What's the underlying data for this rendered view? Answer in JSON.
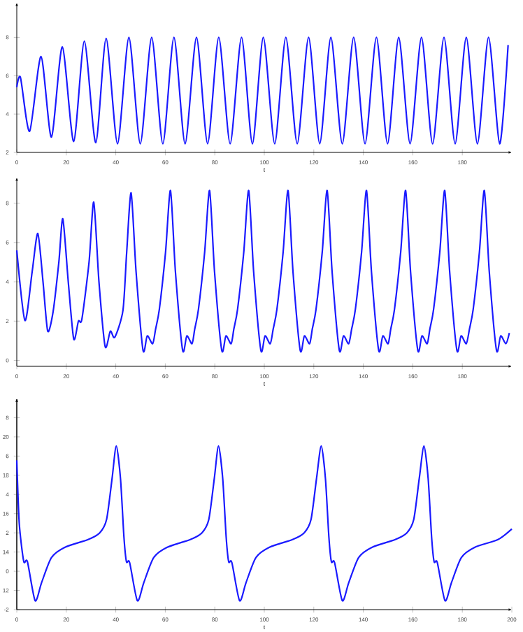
{
  "chart_data": [
    {
      "type": "line",
      "xlabel": "t",
      "color": "#1a1aff",
      "xlim": [
        0,
        200
      ],
      "ylim": [
        2,
        9.8
      ],
      "xticks": [
        0,
        20,
        40,
        60,
        80,
        100,
        120,
        140,
        160,
        180
      ],
      "yticks": [
        2,
        4,
        6,
        8
      ],
      "x": [
        0,
        1.5,
        5.2,
        9.8,
        14.0,
        18.4,
        23.0,
        27.3,
        31.9,
        36.1,
        40.7,
        45.3,
        49.9,
        54.5,
        59.0,
        63.5,
        68.0,
        72.6,
        77.1,
        81.6,
        86.2,
        90.8,
        95.2,
        99.6,
        104.2,
        108.7,
        113.3,
        117.9,
        122.4,
        126.9,
        131.5,
        136.1,
        140.7,
        145.3,
        149.8,
        154.3,
        158.9,
        163.5,
        168.0,
        172.6,
        177.1,
        181.6,
        186.1,
        190.6,
        195.1,
        198.5
      ],
      "values": [
        5.4,
        5.9,
        3.1,
        7.0,
        2.8,
        7.5,
        2.57,
        7.8,
        2.5,
        7.95,
        2.45,
        8.0,
        2.45,
        8.0,
        2.45,
        8.0,
        2.45,
        8.0,
        2.45,
        8.0,
        2.45,
        8.0,
        2.45,
        8.0,
        2.45,
        8.0,
        2.45,
        8.0,
        2.45,
        8.0,
        2.45,
        8.0,
        2.45,
        8.0,
        2.45,
        8.0,
        2.45,
        8.0,
        2.45,
        8.0,
        2.45,
        8.0,
        2.45,
        8.0,
        2.45,
        7.6
      ]
    },
    {
      "type": "line",
      "xlabel": "t",
      "color": "#1a1aff",
      "xlim": [
        0,
        200
      ],
      "ylim": [
        -0.3,
        9.3
      ],
      "xticks": [
        0,
        20,
        40,
        60,
        80,
        100,
        120,
        140,
        160,
        180
      ],
      "yticks": [
        0,
        2,
        4,
        6,
        8
      ],
      "x": [
        0,
        3.3,
        6.2,
        8.5,
        10.6,
        12.5,
        14.7,
        17.0,
        18.6,
        20.8,
        23.0,
        24.9,
        26.3,
        29.2,
        31.1,
        33.2,
        35.7,
        37.8,
        39.6,
        42.9,
        44.4,
        46.2,
        48.2,
        51.0,
        52.7,
        54.9,
        56.1,
        57.6,
        60.1,
        62.1,
        64.1,
        67.0,
        68.7,
        70.8,
        71.9,
        73.4,
        75.9,
        77.9,
        79.9,
        82.8,
        84.5,
        86.6,
        87.7,
        89.2,
        91.7,
        93.7,
        95.7,
        98.6,
        100.3,
        102.4,
        103.6,
        105.1,
        107.6,
        109.6,
        111.6,
        114.5,
        116.2,
        118.3,
        119.4,
        120.9,
        123.4,
        125.4,
        127.4,
        130.3,
        132.0,
        134.1,
        135.3,
        136.8,
        139.3,
        141.3,
        143.3,
        146.2,
        147.9,
        150.0,
        151.1,
        152.6,
        155.1,
        157.1,
        159.1,
        162.0,
        163.7,
        165.8,
        166.9,
        168.4,
        170.9,
        172.9,
        174.9,
        177.8,
        179.5,
        181.6,
        182.9,
        184.4,
        186.9,
        188.9,
        190.9,
        193.8,
        195.5,
        197.6,
        199
      ],
      "values": [
        5.6,
        2.03,
        4.5,
        6.46,
        4.0,
        1.49,
        2.5,
        5.0,
        7.2,
        4.0,
        1.09,
        2.0,
        2.1,
        5.0,
        8.05,
        4.0,
        0.71,
        1.49,
        1.18,
        2.55,
        5.5,
        8.52,
        4.5,
        0.52,
        1.25,
        0.85,
        1.6,
        2.6,
        5.5,
        8.64,
        4.5,
        0.52,
        1.25,
        0.85,
        1.6,
        2.6,
        5.5,
        8.64,
        4.5,
        0.52,
        1.25,
        0.85,
        1.6,
        2.6,
        5.5,
        8.64,
        4.5,
        0.52,
        1.25,
        0.85,
        1.6,
        2.6,
        5.5,
        8.64,
        4.5,
        0.52,
        1.25,
        0.85,
        1.6,
        2.6,
        5.5,
        8.64,
        4.5,
        0.52,
        1.25,
        0.85,
        1.6,
        2.6,
        5.5,
        8.64,
        4.5,
        0.52,
        1.25,
        0.85,
        1.6,
        2.6,
        5.5,
        8.64,
        4.5,
        0.52,
        1.25,
        0.85,
        1.6,
        2.6,
        5.5,
        8.64,
        4.5,
        0.52,
        1.25,
        0.85,
        1.6,
        2.6,
        5.5,
        8.64,
        4.5,
        0.52,
        1.25,
        0.85,
        1.4
      ]
    },
    {
      "type": "line",
      "xlabel": "t",
      "color": "#1a1aff",
      "xlim": [
        0,
        200
      ],
      "ylim": [
        -2,
        9
      ],
      "xticks": [
        0,
        20,
        40,
        60,
        80,
        100,
        120,
        140,
        160,
        180,
        200
      ],
      "yticks": [
        -2,
        0,
        2,
        4,
        6,
        8
      ],
      "y2lim": [
        11,
        22
      ],
      "y2ticks": [
        12,
        14,
        16,
        18,
        20
      ],
      "x": [
        0,
        1,
        2.8,
        4.3,
        7.4,
        10,
        14,
        19.5,
        28.8,
        33.5,
        36.3,
        38.5,
        40.2,
        41.9,
        43.3,
        44.3,
        45.6,
        48.7,
        51.3,
        55.3,
        60.8,
        70.1,
        74.8,
        77.6,
        79.8,
        81.5,
        83.2,
        84.6,
        85.6,
        86.9,
        90.0,
        92.6,
        96.6,
        102.1,
        111.4,
        116.1,
        118.9,
        121.1,
        123.0,
        124.7,
        126.1,
        127.1,
        128.4,
        131.5,
        134.1,
        138.1,
        143.6,
        152.9,
        157.6,
        160.4,
        162.6,
        164.5,
        166.2,
        167.6,
        168.6,
        169.9,
        173.0,
        175.6,
        179.6,
        185.1,
        194.4,
        200
      ],
      "values": [
        5.78,
        2.5,
        0.52,
        0.5,
        -1.53,
        -0.6,
        0.71,
        1.25,
        1.65,
        2.0,
        2.71,
        4.83,
        6.53,
        4.83,
        1.77,
        0.5,
        0.45,
        -1.53,
        -0.6,
        0.71,
        1.25,
        1.65,
        2.0,
        2.71,
        4.83,
        6.53,
        4.83,
        1.77,
        0.5,
        0.45,
        -1.53,
        -0.6,
        0.71,
        1.25,
        1.65,
        2.0,
        2.71,
        4.83,
        6.53,
        4.83,
        1.77,
        0.5,
        0.45,
        -1.53,
        -0.6,
        0.71,
        1.25,
        1.65,
        2.0,
        2.71,
        4.83,
        6.53,
        4.83,
        1.77,
        0.5,
        0.45,
        -1.53,
        -0.6,
        0.71,
        1.25,
        1.65,
        2.2
      ]
    }
  ]
}
